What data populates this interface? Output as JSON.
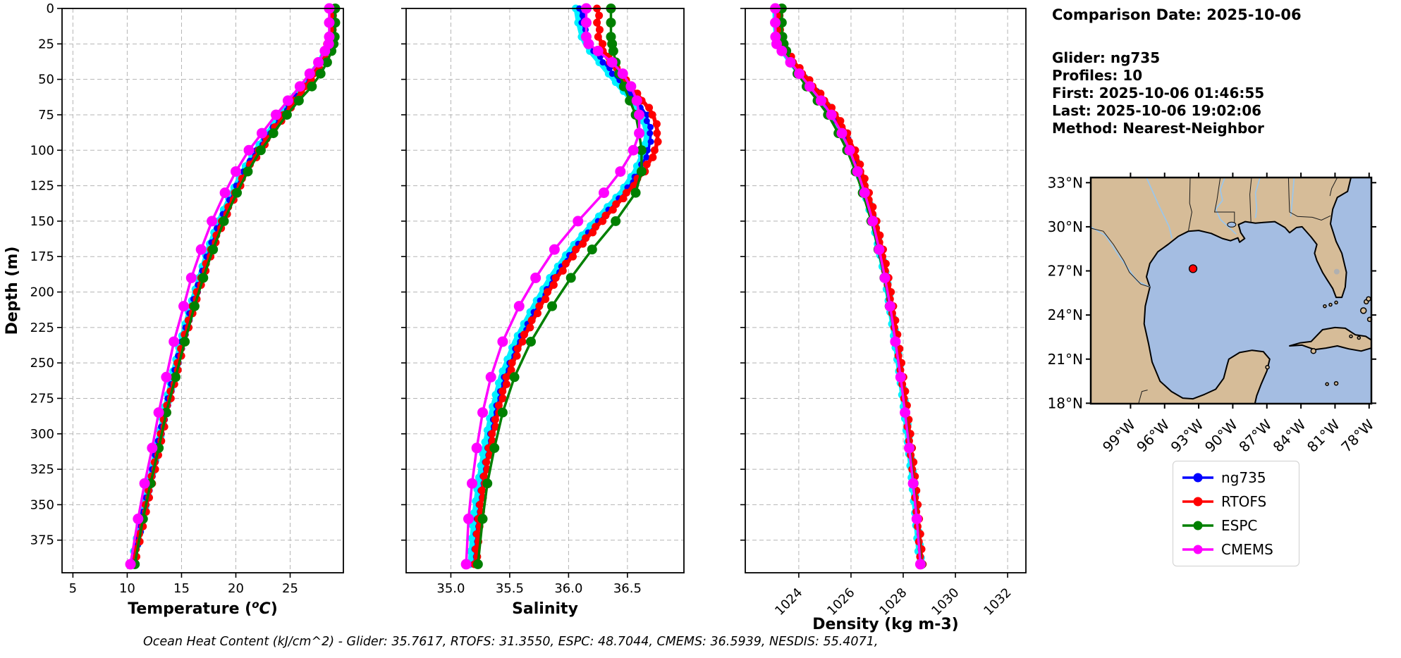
{
  "info_panel": {
    "comparison_date": "Comparison Date: 2025-10-06",
    "glider": "Glider: ng735",
    "profiles": "Profiles: 10",
    "first": "First: 2025-10-06 01:46:55",
    "last": "Last: 2025-10-06 19:02:06",
    "method": "Method: Nearest-Neighbor"
  },
  "annotation_bottom": "Ocean Heat Content (kJ/cm^2) - Glider: 35.7617,  RTOFS: 31.3550,  ESPC: 48.7044,  CMEMS: 36.5939,  NESDIS: 55.4071,",
  "legend": {
    "items": [
      {
        "label": "ng735",
        "color": "#0000ff"
      },
      {
        "label": "RTOFS",
        "color": "#ff0000"
      },
      {
        "label": "ESPC",
        "color": "#008000"
      },
      {
        "label": "CMEMS",
        "color": "#ff00ff"
      }
    ]
  },
  "colors": {
    "grid": "#b5b5b5",
    "spine": "#000000",
    "glider_cloud": "#00f0ff",
    "land": "#d6bc98",
    "ocean": "#a4bde2",
    "river": "#9dc6e8",
    "lake_gray": "#b0b0b0",
    "marker_red": "#ff0000"
  },
  "chart_data": [
    {
      "type": "line",
      "title": "",
      "xlabel_parts": [
        {
          "text": "Temperature ("
        },
        {
          "text": "o",
          "style": "sup-italic"
        },
        {
          "text": "C",
          "style": "italic"
        },
        {
          "text": ")"
        }
      ],
      "ylabel": "Depth (m)",
      "xlim": [
        4.0,
        29.9
      ],
      "ylim": [
        0,
        398
      ],
      "xticks": [
        5,
        10,
        15,
        20,
        25
      ],
      "xtick_labels": [
        "5",
        "10",
        "15",
        "20",
        "25"
      ],
      "yticks": [
        0,
        25,
        50,
        75,
        100,
        125,
        150,
        175,
        200,
        225,
        250,
        275,
        300,
        325,
        350,
        375
      ],
      "grid": true,
      "show_ytick_labels": true,
      "xtick_rotation": 0,
      "depths": [
        0,
        10,
        20,
        25,
        30,
        38,
        46,
        55,
        65,
        75,
        88,
        100,
        115,
        130,
        150,
        170,
        190,
        210,
        235,
        260,
        285,
        310,
        335,
        360,
        392
      ],
      "series": [
        {
          "name": "glider-profiles",
          "color": "#00f0ff",
          "values": [
            28.85,
            28.85,
            28.8,
            28.6,
            28.25,
            27.75,
            27.0,
            26.2,
            25.2,
            24.2,
            23.0,
            21.9,
            20.7,
            19.7,
            18.5,
            17.5,
            16.7,
            15.9,
            15.0,
            14.2,
            13.45,
            12.75,
            12.05,
            11.35,
            10.45
          ]
        },
        {
          "name": "ng735",
          "color": "#0000ff",
          "values": [
            28.9,
            28.9,
            28.85,
            28.7,
            28.3,
            27.8,
            27.1,
            26.3,
            25.3,
            24.3,
            23.1,
            22.0,
            20.8,
            19.8,
            18.6,
            17.6,
            16.8,
            16.0,
            15.1,
            14.3,
            13.5,
            12.8,
            12.1,
            11.4,
            10.5
          ]
        },
        {
          "name": "RTOFS",
          "color": "#ff0000",
          "values": [
            28.85,
            28.85,
            28.8,
            28.3,
            28.2,
            27.9,
            27.25,
            26.45,
            25.45,
            24.5,
            23.3,
            22.2,
            21.0,
            20.0,
            18.8,
            17.8,
            16.9,
            16.1,
            15.2,
            14.4,
            13.6,
            12.9,
            12.2,
            11.5,
            10.6
          ]
        },
        {
          "name": "ESPC",
          "color": "#008000",
          "values": [
            29.15,
            29.15,
            29.1,
            29.0,
            28.8,
            28.4,
            27.8,
            27.0,
            25.8,
            24.7,
            23.45,
            22.3,
            21.1,
            20.1,
            18.9,
            17.9,
            17.0,
            16.2,
            15.3,
            14.45,
            13.6,
            12.9,
            12.15,
            11.45,
            10.7
          ]
        },
        {
          "name": "CMEMS",
          "color": "#ff00ff",
          "values": [
            28.6,
            28.6,
            28.6,
            28.55,
            28.2,
            27.6,
            26.8,
            25.9,
            24.8,
            23.7,
            22.4,
            21.2,
            20.0,
            19.0,
            17.8,
            16.8,
            15.9,
            15.2,
            14.3,
            13.6,
            12.9,
            12.3,
            11.6,
            11.0,
            10.3
          ]
        }
      ]
    },
    {
      "type": "line",
      "title": "",
      "xlabel_parts": [
        {
          "text": "Salinity"
        }
      ],
      "xlim": [
        34.62,
        36.98
      ],
      "ylim": [
        0,
        398
      ],
      "xticks": [
        35.0,
        35.5,
        36.0,
        36.5
      ],
      "xtick_labels": [
        "35.0",
        "35.5",
        "36.0",
        "36.5"
      ],
      "yticks": [
        0,
        25,
        50,
        75,
        100,
        125,
        150,
        175,
        200,
        225,
        250,
        275,
        300,
        325,
        350,
        375
      ],
      "grid": true,
      "show_ytick_labels": false,
      "xtick_rotation": 0,
      "depths": [
        0,
        10,
        20,
        25,
        30,
        38,
        46,
        55,
        65,
        75,
        88,
        100,
        115,
        130,
        150,
        170,
        190,
        210,
        235,
        260,
        285,
        310,
        335,
        360,
        392
      ],
      "series": [
        {
          "name": "glider-profiles",
          "color": "#00f0ff",
          "values": [
            36.07,
            36.09,
            36.12,
            36.15,
            36.19,
            36.27,
            36.35,
            36.44,
            36.55,
            36.63,
            36.67,
            36.65,
            36.57,
            36.45,
            36.23,
            36.02,
            35.85,
            35.71,
            35.55,
            35.43,
            35.35,
            35.29,
            35.24,
            35.2,
            35.17
          ]
        },
        {
          "name": "ng735",
          "color": "#0000ff",
          "values": [
            36.1,
            36.12,
            36.15,
            36.18,
            36.22,
            36.3,
            36.38,
            36.47,
            36.58,
            36.66,
            36.7,
            36.68,
            36.6,
            36.48,
            36.26,
            36.05,
            35.88,
            35.74,
            35.58,
            35.46,
            35.38,
            35.32,
            35.27,
            35.23,
            35.2
          ]
        },
        {
          "name": "RTOFS",
          "color": "#ff0000",
          "values": [
            36.25,
            36.25,
            36.26,
            36.28,
            36.3,
            36.36,
            36.44,
            36.52,
            36.63,
            36.72,
            36.76,
            36.74,
            36.64,
            36.5,
            36.28,
            36.07,
            35.9,
            35.76,
            35.6,
            35.48,
            35.4,
            35.33,
            35.28,
            35.24,
            35.21
          ]
        },
        {
          "name": "ESPC",
          "color": "#008000",
          "values": [
            36.36,
            36.36,
            36.36,
            36.37,
            36.38,
            36.4,
            36.43,
            36.47,
            36.52,
            36.57,
            36.6,
            36.62,
            36.62,
            36.57,
            36.4,
            36.2,
            36.02,
            35.86,
            35.68,
            35.54,
            35.44,
            35.37,
            35.31,
            35.27,
            35.23
          ]
        },
        {
          "name": "CMEMS",
          "color": "#ff00ff",
          "values": [
            36.15,
            36.15,
            36.15,
            36.17,
            36.25,
            36.37,
            36.46,
            36.53,
            36.58,
            36.6,
            36.6,
            36.55,
            36.44,
            36.3,
            36.08,
            35.88,
            35.72,
            35.58,
            35.44,
            35.34,
            35.27,
            35.22,
            35.18,
            35.15,
            35.13
          ]
        }
      ]
    },
    {
      "type": "line",
      "title": "",
      "xlabel_parts": [
        {
          "text": "Density (kg m-3)"
        }
      ],
      "xlim": [
        1021.95,
        1032.7
      ],
      "ylim": [
        0,
        398
      ],
      "xticks": [
        1024,
        1026,
        1028,
        1030,
        1032
      ],
      "xtick_labels": [
        "1024",
        "1026",
        "1028",
        "1030",
        "1032"
      ],
      "yticks": [
        0,
        25,
        50,
        75,
        100,
        125,
        150,
        175,
        200,
        225,
        250,
        275,
        300,
        325,
        350,
        375
      ],
      "grid": true,
      "show_ytick_labels": false,
      "xtick_rotation": 45,
      "depths": [
        0,
        10,
        20,
        25,
        30,
        38,
        46,
        55,
        65,
        75,
        88,
        100,
        115,
        130,
        150,
        170,
        190,
        210,
        235,
        260,
        285,
        310,
        335,
        360,
        392
      ],
      "series": [
        {
          "name": "glider-profiles",
          "color": "#00f0ff",
          "values": [
            1023.11,
            1023.12,
            1023.16,
            1023.24,
            1023.41,
            1023.71,
            1024.06,
            1024.46,
            1024.91,
            1025.31,
            1025.71,
            1026.01,
            1026.31,
            1026.56,
            1026.86,
            1027.11,
            1027.33,
            1027.51,
            1027.71,
            1027.91,
            1028.08,
            1028.24,
            1028.38,
            1028.51,
            1028.66
          ]
        },
        {
          "name": "ng735",
          "color": "#0000ff",
          "values": [
            1023.15,
            1023.16,
            1023.2,
            1023.28,
            1023.45,
            1023.75,
            1024.1,
            1024.5,
            1024.95,
            1025.35,
            1025.75,
            1026.05,
            1026.35,
            1026.6,
            1026.9,
            1027.15,
            1027.37,
            1027.55,
            1027.75,
            1027.95,
            1028.12,
            1028.28,
            1028.42,
            1028.55,
            1028.7
          ]
        },
        {
          "name": "RTOFS",
          "color": "#ff0000",
          "values": [
            1023.22,
            1023.23,
            1023.26,
            1023.34,
            1023.52,
            1023.82,
            1024.17,
            1024.57,
            1025.02,
            1025.42,
            1025.82,
            1026.12,
            1026.4,
            1026.65,
            1026.94,
            1027.19,
            1027.4,
            1027.58,
            1027.78,
            1027.97,
            1028.14,
            1028.3,
            1028.44,
            1028.57,
            1028.71
          ]
        },
        {
          "name": "ESPC",
          "color": "#008000",
          "values": [
            1023.35,
            1023.35,
            1023.37,
            1023.42,
            1023.52,
            1023.7,
            1023.95,
            1024.3,
            1024.72,
            1025.12,
            1025.52,
            1025.85,
            1026.18,
            1026.45,
            1026.78,
            1027.05,
            1027.28,
            1027.48,
            1027.7,
            1027.9,
            1028.08,
            1028.25,
            1028.4,
            1028.53,
            1028.69
          ]
        },
        {
          "name": "CMEMS",
          "color": "#ff00ff",
          "values": [
            1023.1,
            1023.1,
            1023.11,
            1023.15,
            1023.35,
            1023.68,
            1024.02,
            1024.42,
            1024.85,
            1025.25,
            1025.65,
            1025.95,
            1026.25,
            1026.52,
            1026.83,
            1027.08,
            1027.3,
            1027.5,
            1027.7,
            1027.9,
            1028.07,
            1028.23,
            1028.38,
            1028.52,
            1028.66
          ]
        }
      ]
    }
  ],
  "map": {
    "lat_tick_labels": [
      "33°N",
      "30°N",
      "27°N",
      "24°N",
      "21°N",
      "18°N"
    ],
    "lat_tick_values": [
      33,
      30,
      27,
      24,
      21,
      18
    ],
    "lon_tick_labels": [
      "99°W",
      "96°W",
      "93°W",
      "90°W",
      "87°W",
      "84°W",
      "81°W",
      "78°W"
    ],
    "lon_tick_values": [
      -99,
      -96,
      -93,
      -90,
      -87,
      -84,
      -81,
      -78
    ],
    "extent": {
      "lon_min": -102.5,
      "lon_max": -77.8,
      "lat_min": 17.97,
      "lat_max": 33.35
    },
    "marker": {
      "lon": -93.5,
      "lat": 27.15,
      "color": "#ff0000"
    }
  }
}
